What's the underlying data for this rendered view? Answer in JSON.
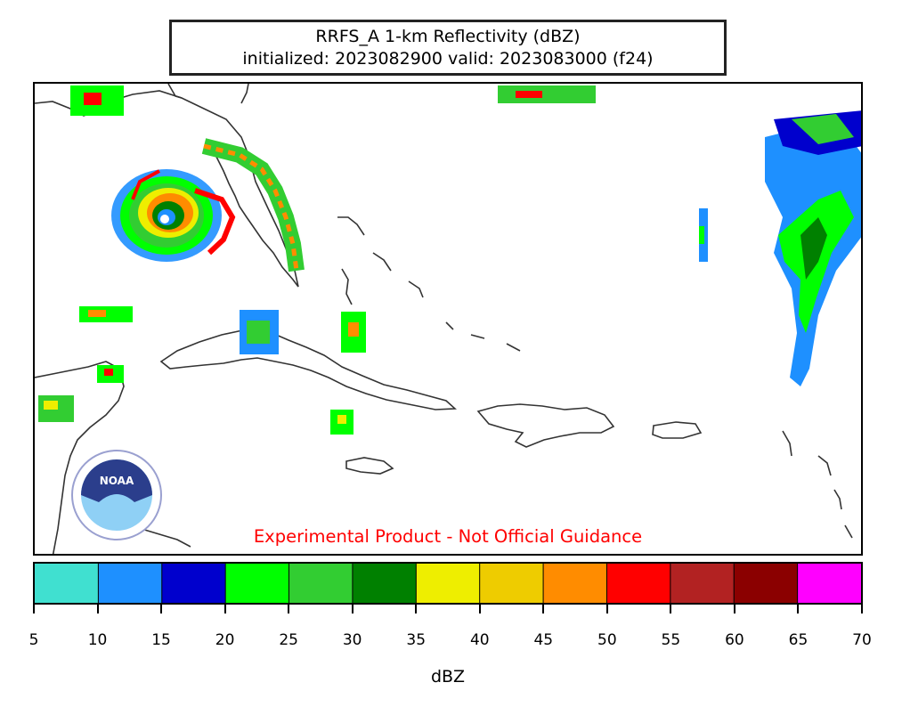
{
  "title": {
    "line1": "RRFS_A 1-km Reflectivity (dBZ)",
    "line2": "initialized: 2023082900 valid: 2023083000 (f24)"
  },
  "disclaimer": "Experimental Product - Not Official Guidance",
  "colorbar": {
    "label": "dBZ",
    "ticks": [
      "5",
      "10",
      "15",
      "20",
      "25",
      "30",
      "35",
      "40",
      "45",
      "50",
      "55",
      "60",
      "65",
      "70"
    ],
    "colors": [
      "#40e0d0",
      "#1e90ff",
      "#0000cd",
      "#00ff00",
      "#32cd32",
      "#008000",
      "#eeee00",
      "#eecc00",
      "#ff8c00",
      "#ff0000",
      "#b22222",
      "#8b0000",
      "#ff00ff"
    ]
  },
  "logo": {
    "text": "NOAA"
  }
}
